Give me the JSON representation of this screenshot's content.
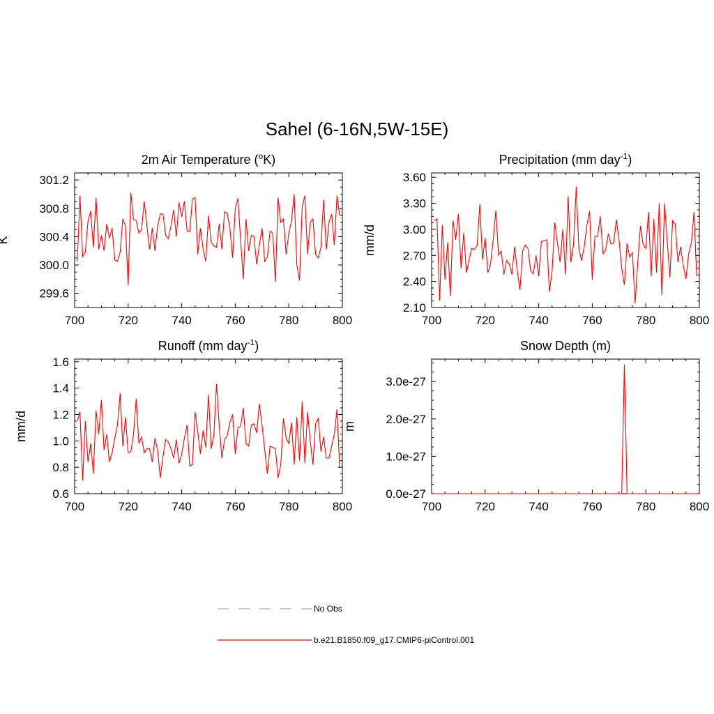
{
  "figure": {
    "title": "Sahel (6-16N,5W-15E)"
  },
  "chart_data": [
    {
      "type": "line",
      "title": "2m Air Temperature (°K)",
      "title_parts": {
        "main": "2m Air Temperature (",
        "sup": "o",
        "tail": "K)"
      },
      "xlabel": "",
      "ylabel": "K",
      "xlim": [
        700,
        800
      ],
      "ylim": [
        299.4,
        301.3
      ],
      "xticks": [
        700,
        720,
        740,
        760,
        780,
        800
      ],
      "xtick_labels": [
        "700",
        "720",
        "740",
        "760",
        "780",
        "800"
      ],
      "yticks": [
        299.6,
        300.0,
        300.4,
        300.8,
        301.2
      ],
      "ytick_labels": [
        "299.6",
        "300.0",
        "300.4",
        "300.8",
        "301.2"
      ],
      "series": [
        {
          "name": "b.e21.B1850.f09_g17.CMIP6-piControl.001",
          "color": "#ff0000",
          "x_start": 701,
          "x_step": 1,
          "values": [
            300.05,
            300.98,
            300.12,
            300.18,
            300.62,
            300.76,
            300.25,
            300.95,
            300.22,
            300.42,
            300.2,
            300.58,
            300.38,
            300.52,
            300.07,
            300.05,
            300.18,
            300.65,
            300.55,
            299.71,
            301.02,
            300.64,
            300.63,
            300.45,
            300.5,
            300.9,
            300.55,
            300.22,
            300.52,
            300.2,
            300.55,
            300.72,
            300.72,
            300.42,
            300.37,
            300.55,
            300.78,
            300.4,
            300.88,
            300.68,
            300.9,
            300.48,
            300.47,
            300.93,
            300.95,
            300.15,
            300.52,
            300.22,
            300.05,
            300.7,
            300.32,
            300.27,
            300.25,
            300.58,
            300.22,
            300.75,
            300.73,
            300.52,
            300.1,
            300.8,
            300.94,
            300.35,
            299.8,
            300.65,
            300.2,
            300.42,
            300.4,
            300.01,
            300.28,
            300.52,
            300.05,
            300.12,
            300.48,
            300.45,
            299.76,
            300.95,
            300.6,
            300.65,
            300.15,
            300.45,
            300.62,
            301.0,
            300.0,
            299.78,
            300.82,
            300.98,
            300.15,
            300.6,
            300.65,
            300.15,
            300.1,
            300.25,
            300.92,
            300.22,
            300.6,
            300.72,
            300.28,
            300.98,
            300.7
          ]
        }
      ]
    },
    {
      "type": "line",
      "title": "Precipitation (mm day-1)",
      "title_parts": {
        "main": "Precipitation (mm day",
        "sup": "-1",
        "tail": ")"
      },
      "xlabel": "",
      "ylabel": "mm/d",
      "xlim": [
        700,
        800
      ],
      "ylim": [
        2.1,
        3.65
      ],
      "xticks": [
        700,
        720,
        740,
        760,
        780,
        800
      ],
      "xtick_labels": [
        "700",
        "720",
        "740",
        "760",
        "780",
        "800"
      ],
      "yticks": [
        2.1,
        2.4,
        2.7,
        3.0,
        3.3,
        3.6
      ],
      "ytick_labels": [
        "2.10",
        "2.40",
        "2.70",
        "3.00",
        "3.30",
        "3.60"
      ],
      "series": [
        {
          "name": "b.e21.B1850.f09_g17.CMIP6-piControl.001",
          "color": "#ff0000",
          "x_start": 701,
          "x_step": 1,
          "values": [
            3.1,
            3.12,
            2.18,
            3.05,
            2.42,
            2.85,
            2.23,
            3.1,
            2.88,
            3.18,
            2.55,
            2.96,
            2.5,
            2.65,
            2.78,
            2.77,
            2.81,
            3.29,
            2.65,
            2.9,
            2.5,
            2.6,
            2.88,
            3.22,
            2.7,
            2.75,
            2.48,
            2.64,
            2.6,
            2.48,
            2.8,
            2.52,
            2.3,
            2.75,
            2.82,
            2.78,
            2.52,
            2.49,
            2.7,
            2.46,
            2.86,
            2.87,
            2.88,
            2.28,
            2.52,
            3.08,
            2.84,
            2.62,
            3.0,
            2.48,
            3.38,
            2.62,
            2.82,
            3.49,
            2.78,
            2.64,
            2.8,
            3.05,
            3.21,
            2.42,
            2.92,
            2.92,
            3.15,
            2.72,
            2.76,
            2.95,
            2.83,
            2.84,
            3.11,
            2.88,
            2.55,
            2.36,
            2.84,
            2.68,
            2.73,
            2.15,
            2.62,
            3.04,
            2.82,
            2.78,
            3.2,
            2.46,
            3.12,
            2.5,
            3.3,
            2.24,
            3.3,
            2.86,
            2.45,
            3.1,
            3.06,
            2.62,
            2.8,
            2.58,
            2.43,
            2.72,
            2.84,
            3.2,
            2.46
          ]
        }
      ]
    },
    {
      "type": "line",
      "title": "Runoff (mm day-1)",
      "title_parts": {
        "main": "Runoff (mm day",
        "sup": "-1",
        "tail": ")"
      },
      "xlabel": "",
      "ylabel": "mm/d",
      "xlim": [
        700,
        800
      ],
      "ylim": [
        0.6,
        1.62
      ],
      "xticks": [
        700,
        720,
        740,
        760,
        780,
        800
      ],
      "xtick_labels": [
        "700",
        "720",
        "740",
        "760",
        "780",
        "800"
      ],
      "yticks": [
        0.6,
        0.8,
        1.0,
        1.2,
        1.4,
        1.6
      ],
      "ytick_labels": [
        "0.6",
        "0.8",
        "1.0",
        "1.2",
        "1.4",
        "1.6"
      ],
      "series": [
        {
          "name": "b.e21.B1850.f09_g17.CMIP6-piControl.001",
          "color": "#ff0000",
          "x_start": 701,
          "x_step": 1,
          "values": [
            1.15,
            1.22,
            0.7,
            1.15,
            0.84,
            0.98,
            0.75,
            1.23,
            1.05,
            1.31,
            0.93,
            1.05,
            0.84,
            0.91,
            1.02,
            1.12,
            1.36,
            0.96,
            1.18,
            0.91,
            0.92,
            1.05,
            1.32,
            0.98,
            1.03,
            0.91,
            0.94,
            0.94,
            0.84,
            1.02,
            0.93,
            0.72,
            0.88,
            1.01,
            0.99,
            0.94,
            0.87,
            1.01,
            0.83,
            0.9,
            1.02,
            1.12,
            0.81,
            0.82,
            1.22,
            1.07,
            0.9,
            1.08,
            0.95,
            1.35,
            0.94,
            1.04,
            1.43,
            1.12,
            0.87,
            1.01,
            1.04,
            1.14,
            1.2,
            0.9,
            1.1,
            1.11,
            1.25,
            0.98,
            0.96,
            1.12,
            1.13,
            1.06,
            1.28,
            1.12,
            0.93,
            0.75,
            0.96,
            0.95,
            0.94,
            0.72,
            0.82,
            1.17,
            1.02,
            0.98,
            1.14,
            0.82,
            1.18,
            0.85,
            1.3,
            0.83,
            1.22,
            1.0,
            0.82,
            1.13,
            1.17,
            0.92,
            1.03,
            0.87,
            0.87,
            0.96,
            1.05,
            1.24,
            0.8
          ]
        }
      ]
    },
    {
      "type": "line",
      "title": "Snow Depth (m)",
      "title_parts": {
        "main": "Snow Depth (m)",
        "sup": "",
        "tail": ""
      },
      "xlabel": "",
      "ylabel": "m",
      "xlim": [
        700,
        800
      ],
      "ylim": [
        0,
        3.6e-27
      ],
      "xticks": [
        700,
        720,
        740,
        760,
        780,
        800
      ],
      "xtick_labels": [
        "700",
        "720",
        "740",
        "760",
        "780",
        "800"
      ],
      "yticks": [
        0,
        1e-27,
        2e-27,
        3e-27
      ],
      "ytick_labels": [
        "0.0e-27",
        "1.0e-27",
        "2.0e-27",
        "3.0e-27"
      ],
      "series": [
        {
          "name": "b.e21.B1850.f09_g17.CMIP6-piControl.001",
          "color": "#ff0000",
          "x_start": 701,
          "x_step": 1,
          "values": [
            0,
            0,
            0,
            0,
            0,
            0,
            0,
            0,
            0,
            0,
            0,
            0,
            0,
            0,
            0,
            0,
            0,
            0,
            0,
            0,
            0,
            0,
            0,
            0,
            0,
            0,
            0,
            0,
            0,
            0,
            0,
            0,
            0,
            0,
            0,
            0,
            0,
            0,
            0,
            0,
            0,
            0,
            0,
            0,
            0,
            0,
            0,
            0,
            0,
            0,
            0,
            0,
            0,
            0,
            0,
            0,
            0,
            0,
            0,
            0,
            0,
            0,
            0,
            0,
            0,
            0,
            0,
            0,
            0,
            0,
            0,
            3.45e-27,
            0,
            0,
            0,
            0,
            0,
            0,
            0,
            0,
            0,
            0,
            0,
            0,
            0,
            0,
            0,
            0,
            0,
            0,
            0,
            0,
            0,
            0,
            0,
            0,
            0,
            0,
            0
          ]
        }
      ]
    }
  ],
  "legend": {
    "placement": "bottom-center",
    "entries": [
      {
        "label": "No Obs",
        "color": "#a0a0ff",
        "style": "dashed"
      },
      {
        "label": "b.e21.B1850.f09_g17.CMIP6-piControl.001",
        "color": "#ff0000",
        "style": "solid"
      }
    ]
  }
}
